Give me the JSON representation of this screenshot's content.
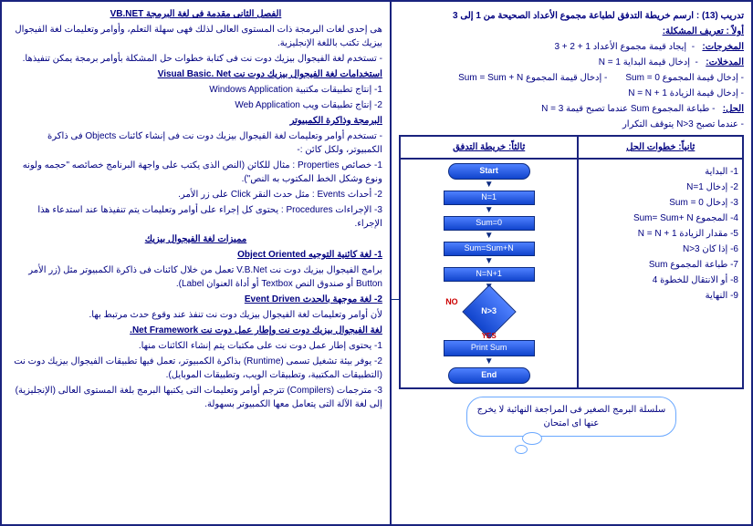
{
  "right": {
    "tadrib": "تدريب (13) : ارسم خريطة التدفق لطباعة مجموع الأعداد الصحيحة من 1 إلى 3",
    "awalan": "أولاً : تعريف المشكلة:",
    "mokhrager_label": "المخرجات:",
    "mokhrager": "إيجاد قيمة مجموع الأعداد 1 + 2 + 3",
    "modkhalat_label": "المدخلات:",
    "mod1": "إدخال قيمة البداية  N = 1",
    "mod2": "إدخال قيمة المجموع  Sum = 0",
    "mod2b": "إدخال قيمة المجموع  Sum = Sum + N",
    "mod3": "إدخال قيمة الزيادة  N = N + 1",
    "hal_label": "الحل:",
    "hal1": "طباعة المجموع Sum عندما تصبح قيمة  N = 3",
    "hal2": "عندما تصبح N>3 يتوقف التكرار",
    "grid_head_right": "ثانياً: خطوات الحل",
    "grid_head_left": "ثالثاً: خريطة التدفق",
    "steps": [
      "1- البداية",
      "2- إدخال N=1",
      "3- إدخال Sum = 0",
      "4- المجموع Sum= Sum+ N",
      "5- مقدار الزيادة N = N + 1",
      "6- إذا كان  N>3",
      "7- طباعة المجموع Sum",
      "8- أو الانتقال للخطوة 4",
      "9- النهاية"
    ],
    "flow": {
      "start": "Start",
      "n1": "N=1",
      "s0": "Sum=0",
      "ssn": "Sum=Sum+N",
      "nn1": "N=N+1",
      "cond": "N>3",
      "print": "Print  Sum",
      "end": "End",
      "no": "NO",
      "yes": "YES"
    },
    "cloud": "سلسلة البرمج الصغير فى المراجعة النهائية لا يخرج عنها اى امتحان"
  },
  "left": {
    "title": "الفصل الثانى مقدمة فى لغة البرمجة VB.NET",
    "p1": "هى إحدى لغات البرمجة ذات المستوى العالى لذلك فهى سهلة التعلم، وأوامر وتعليمات لغة الفيجوال بيزيك تكتب باللغة الإنجليزية.",
    "p2": "- تستخدم لغة الفيجوال بيزيك دوت نت فى كتابة خطوات حل المشكلة بأوامر برمجة يمكن تنفيذها.",
    "h2": "استخدامات لغة الفيجوال بيزيك دوت نت Visual Basic. Net",
    "li1": "1- إنتاج تطبيقات مكتبية  Windows Application",
    "li2": "2- إنتاج تطبيقات ويب  Web Application",
    "h3": "البرمجة وذاكرة الكمبيوتر",
    "p3": "- تستخدم أوامر وتعليمات لغة الفيجوال بيزيك دوت نت فى إنشاء كائنات Objects فى ذاكرة الكمبيوتر، ولكل كائن :-",
    "li3": "1- خصائص Properties : مثال للكائن (النص الذى يكتب على واجهة البرنامج خصائصه \"حجمه ولونه ونوع وشكل الخط المكتوب به النص\").",
    "li4": "2- أحداث Events : مثل حدث النقر Click على زر الأمر.",
    "li5": "3- الإجراءات Procedures : يحتوى كل إجراء على أوامر وتعليمات يتم تنفيذها عند استدعاء هذا الإجراء.",
    "h4": "مميزات لغة الفيجوال بيزيك",
    "h4a": "1- لغة كائنية التوجيه Object Oriented",
    "p4": "برامج الفيجوال بيزيك دوت نت V.B.Net تعمل من خلال كائنات فى ذاكرة الكمبيوتر مثل (زر الأمر Button أو صندوق النص Textbox أو أداة العنوان Label).",
    "h4b": "2- لغة موجهة بالحدث Event Driven",
    "p5": "لأن أوامر وتعليمات لغة الفيجوال بيزيك دوت نت تنفذ عند وقوع حدث مرتبط بها.",
    "h5": "لغة الفيجوال بيزيك دوت نت وإطار عمل دوت نت Net Framework.",
    "li6": "1- يحتوى إطار عمل دوت نت على مكتبات يتم إنشاء الكائنات منها.",
    "li7": "2- يوفر بيئة تشغيل تسمى (Runtime) بذاكرة الكمبيوتر، تعمل فيها تطبيقات الفيجوال بيزيك دوت نت (التطبيقات المكتبية، وتطبيقات الويب، وتطبيقات الموبايل).",
    "li8": "3- مترجمات (Compilers) تترجم أوامر وتعليمات التى يكتبها البرمج بلغة المستوى العالى (الإنجليزية) إلى لغة الآلة التى يتعامل معها الكمبيوتر بسهولة."
  }
}
